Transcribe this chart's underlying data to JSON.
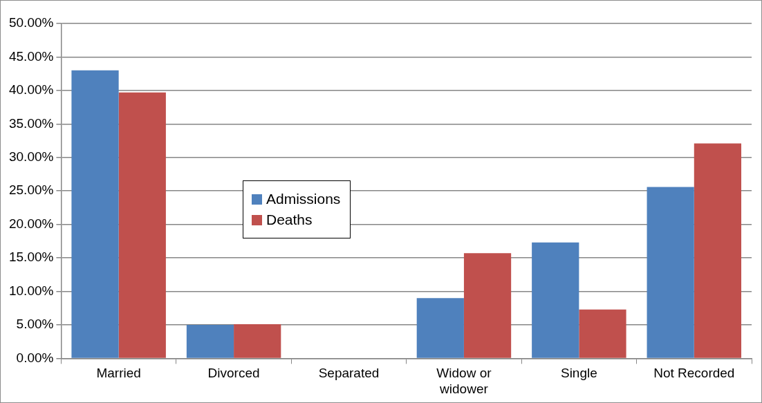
{
  "chart_data": {
    "type": "bar",
    "categories": [
      "Married",
      "Divorced",
      "Separated",
      "Widow or widower",
      "Single",
      "Not Recorded"
    ],
    "series": [
      {
        "name": "Admissions",
        "color": "#4f81bd",
        "values": [
          43.0,
          5.0,
          0,
          9.0,
          17.3,
          25.6
        ]
      },
      {
        "name": "Deaths",
        "color": "#c0504d",
        "values": [
          39.7,
          5.1,
          0,
          15.7,
          7.3,
          32.1
        ]
      }
    ],
    "ylim": [
      0,
      50
    ],
    "yticks": [
      {
        "value": 0,
        "label": "0.00%"
      },
      {
        "value": 5,
        "label": "5.00%"
      },
      {
        "value": 10,
        "label": "10.00%"
      },
      {
        "value": 15,
        "label": "15.00%"
      },
      {
        "value": 20,
        "label": "20.00%"
      },
      {
        "value": 25,
        "label": "25.00%"
      },
      {
        "value": 30,
        "label": "30.00%"
      },
      {
        "value": 35,
        "label": "35.00%"
      },
      {
        "value": 40,
        "label": "40.00%"
      },
      {
        "value": 45,
        "label": "45.00%"
      },
      {
        "value": 50,
        "label": "50.00%"
      }
    ],
    "grid": "y",
    "legend": "left"
  }
}
